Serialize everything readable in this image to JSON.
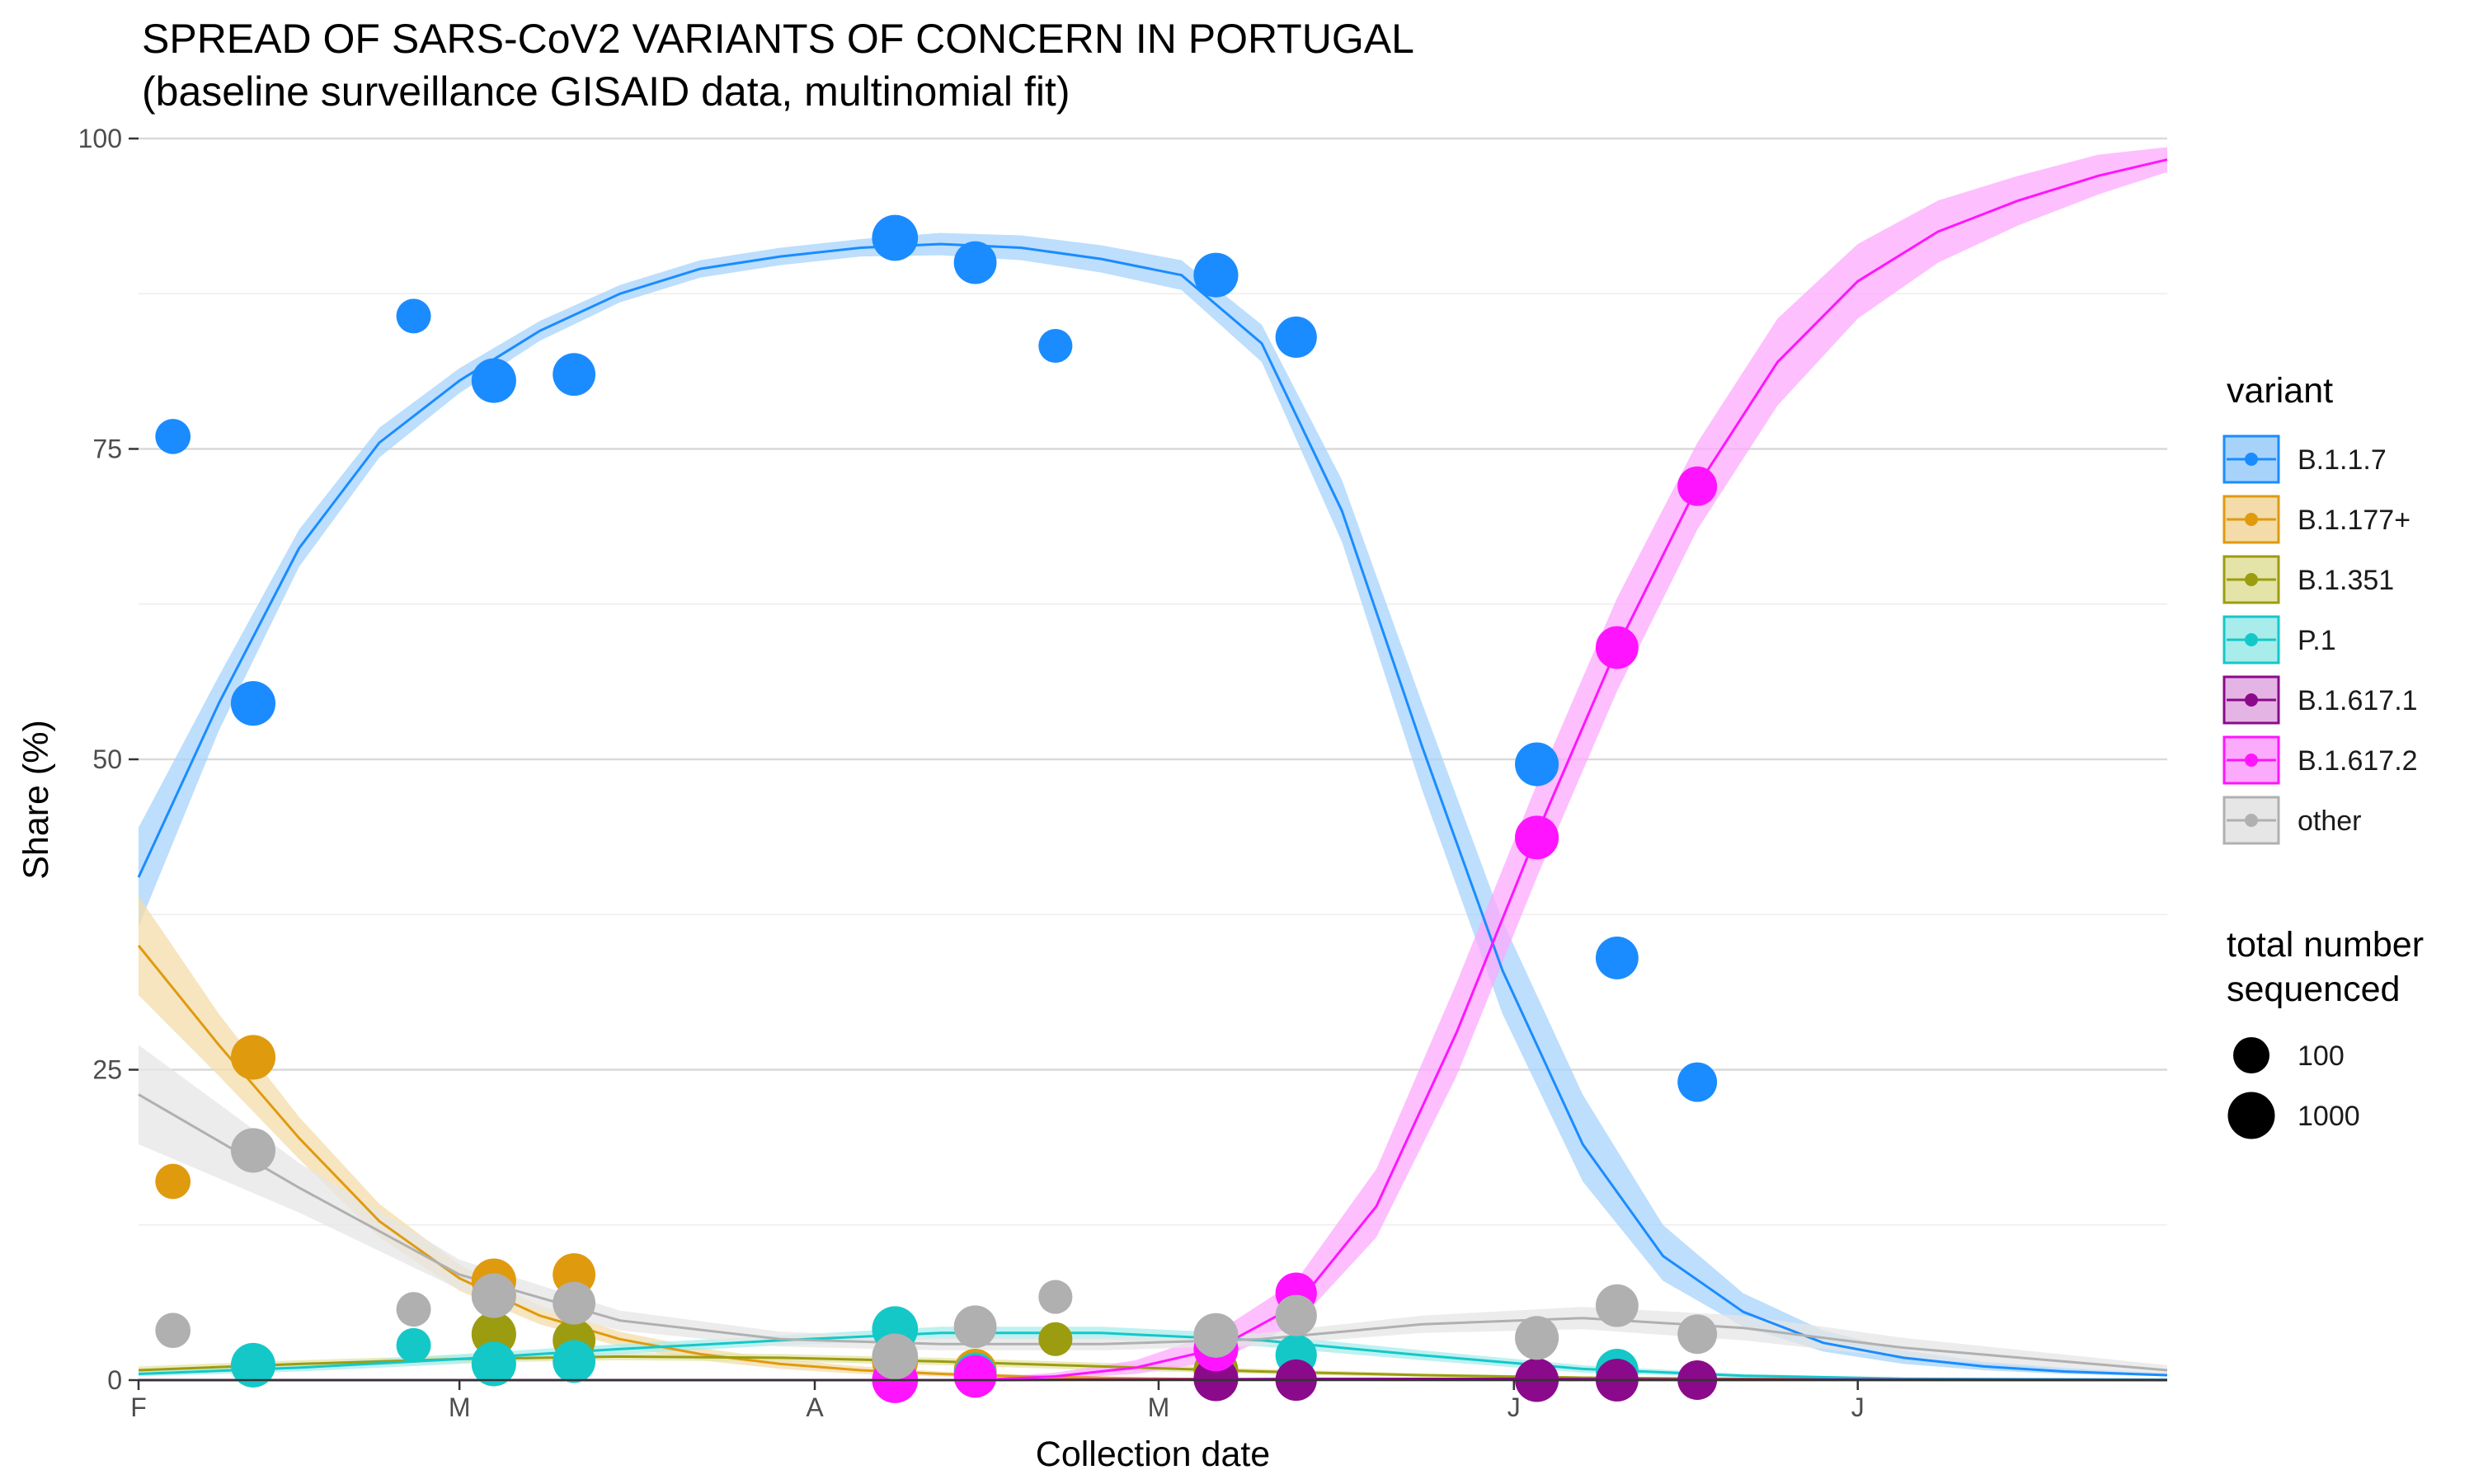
{
  "chart_data": {
    "type": "line",
    "title": "SPREAD OF SARS-CoV2 VARIANTS OF CONCERN IN PORTUGAL",
    "subtitle": "(baseline surveillance GISAID data, multinomial fit)",
    "xlabel": "Collection date",
    "ylabel": "Share (%)",
    "xlim": [
      "2021-02-01",
      "2021-07-28"
    ],
    "ylim": [
      0,
      100
    ],
    "x_ticks": [
      {
        "date": "2021-02-01",
        "label": "F"
      },
      {
        "date": "2021-03-01",
        "label": "M"
      },
      {
        "date": "2021-04-01",
        "label": "A"
      },
      {
        "date": "2021-05-01",
        "label": "M"
      },
      {
        "date": "2021-06-01",
        "label": "J"
      },
      {
        "date": "2021-07-01",
        "label": "J"
      }
    ],
    "y_ticks": [
      0,
      25,
      50,
      75,
      100
    ],
    "grid": true,
    "legend_placement": "right",
    "legend_title": "variant",
    "size_legend": {
      "title_line1": "total number",
      "title_line2": "sequenced",
      "entries": [
        {
          "label": "100",
          "value": 100
        },
        {
          "label": "1000",
          "value": 1000
        }
      ]
    },
    "series": [
      {
        "name": "B.1.1.7",
        "color": "#1a8cff",
        "fill": "#a7d3fb",
        "fit_x": [
          "2021-02-01",
          "2021-02-08",
          "2021-02-15",
          "2021-02-22",
          "2021-03-01",
          "2021-03-08",
          "2021-03-15",
          "2021-03-22",
          "2021-03-29",
          "2021-04-05",
          "2021-04-12",
          "2021-04-19",
          "2021-04-26",
          "2021-05-03",
          "2021-05-10",
          "2021-05-17",
          "2021-05-24",
          "2021-05-31",
          "2021-06-07",
          "2021-06-14",
          "2021-06-21",
          "2021-06-28",
          "2021-07-05",
          "2021-07-12",
          "2021-07-19",
          "2021-07-28"
        ],
        "fit": [
          40.5,
          54.5,
          67,
          75.5,
          80.5,
          84.5,
          87.5,
          89.5,
          90.5,
          91.2,
          91.5,
          91.2,
          90.3,
          89,
          83.5,
          70,
          51,
          33,
          19,
          10,
          5.5,
          3,
          1.8,
          1.1,
          0.7,
          0.4
        ],
        "lower": [
          36.5,
          52.3,
          65.5,
          74.3,
          79.5,
          83.7,
          86.8,
          88.8,
          89.8,
          90.5,
          90.6,
          90.2,
          89.2,
          87.8,
          82,
          67.5,
          47.5,
          29.5,
          16,
          8,
          4.3,
          2.3,
          1.3,
          0.8,
          0.5,
          0.3
        ],
        "upper": [
          44.5,
          56.7,
          68.5,
          76.7,
          81.5,
          85.3,
          88.2,
          90.2,
          91.2,
          91.9,
          92.4,
          92.2,
          91.4,
          90.2,
          85,
          72.5,
          54.5,
          37,
          23,
          12.5,
          7,
          4,
          2.4,
          1.5,
          1,
          0.6
        ],
        "points": [
          {
            "x": "2021-02-04",
            "y": 76,
            "n": 80
          },
          {
            "x": "2021-02-11",
            "y": 54.5,
            "n": 600
          },
          {
            "x": "2021-02-25",
            "y": 85.7,
            "n": 70
          },
          {
            "x": "2021-03-04",
            "y": 80.5,
            "n": 600
          },
          {
            "x": "2021-03-11",
            "y": 81,
            "n": 400
          },
          {
            "x": "2021-04-08",
            "y": 92,
            "n": 800
          },
          {
            "x": "2021-04-15",
            "y": 90,
            "n": 400
          },
          {
            "x": "2021-04-22",
            "y": 83.3,
            "n": 60
          },
          {
            "x": "2021-05-06",
            "y": 89,
            "n": 600
          },
          {
            "x": "2021-05-13",
            "y": 84,
            "n": 300
          },
          {
            "x": "2021-06-03",
            "y": 49.6,
            "n": 500
          },
          {
            "x": "2021-06-10",
            "y": 34,
            "n": 400
          },
          {
            "x": "2021-06-17",
            "y": 24,
            "n": 200
          }
        ]
      },
      {
        "name": "B.1.177+",
        "color": "#e09a0e",
        "fill": "#f3dcaa",
        "fit_x": [
          "2021-02-01",
          "2021-02-08",
          "2021-02-15",
          "2021-02-22",
          "2021-03-01",
          "2021-03-08",
          "2021-03-15",
          "2021-03-22",
          "2021-03-29",
          "2021-04-05",
          "2021-04-12",
          "2021-04-19",
          "2021-04-26",
          "2021-05-03",
          "2021-05-10",
          "2021-05-17",
          "2021-05-24",
          "2021-05-31",
          "2021-06-07",
          "2021-06-14",
          "2021-06-21",
          "2021-06-28",
          "2021-07-05",
          "2021-07-12",
          "2021-07-19",
          "2021-07-28"
        ],
        "fit": [
          35,
          27,
          19.5,
          12.8,
          8.2,
          5.2,
          3.3,
          2.1,
          1.3,
          0.8,
          0.5,
          0.3,
          0.18,
          0.1,
          0.06,
          0.03,
          0.02,
          0.01,
          0,
          0,
          0,
          0,
          0,
          0,
          0,
          0
        ],
        "lower": [
          31,
          24.5,
          17.8,
          11.5,
          7.2,
          4.5,
          2.7,
          1.6,
          0.9,
          0.5,
          0.3,
          0.15,
          0.08,
          0.04,
          0.02,
          0.01,
          0,
          0,
          0,
          0,
          0,
          0,
          0,
          0,
          0,
          0
        ],
        "upper": [
          39,
          29.5,
          21.2,
          14.2,
          9.3,
          6,
          3.9,
          2.6,
          1.7,
          1.1,
          0.7,
          0.45,
          0.3,
          0.18,
          0.11,
          0.06,
          0.04,
          0.02,
          0.01,
          0,
          0,
          0,
          0,
          0,
          0,
          0
        ],
        "points": [
          {
            "x": "2021-02-04",
            "y": 16,
            "n": 80
          },
          {
            "x": "2021-02-11",
            "y": 26,
            "n": 600
          },
          {
            "x": "2021-03-04",
            "y": 8,
            "n": 600
          },
          {
            "x": "2021-03-11",
            "y": 8.5,
            "n": 400
          },
          {
            "x": "2021-04-08",
            "y": 1.5,
            "n": 800
          },
          {
            "x": "2021-04-15",
            "y": 0.8,
            "n": 400
          }
        ]
      },
      {
        "name": "B.1.351",
        "color": "#9c9c10",
        "fill": "#e4e4a8",
        "fit_x": [
          "2021-02-01",
          "2021-02-15",
          "2021-03-01",
          "2021-03-15",
          "2021-03-29",
          "2021-04-12",
          "2021-04-26",
          "2021-05-10",
          "2021-05-24",
          "2021-06-07",
          "2021-06-21",
          "2021-07-05",
          "2021-07-28"
        ],
        "fit": [
          0.8,
          1.3,
          1.7,
          1.9,
          1.8,
          1.5,
          1.1,
          0.7,
          0.4,
          0.2,
          0.1,
          0.05,
          0.02
        ],
        "lower": [
          0.5,
          1,
          1.4,
          1.6,
          1.5,
          1.2,
          0.8,
          0.5,
          0.25,
          0.1,
          0.05,
          0.02,
          0
        ],
        "upper": [
          1.1,
          1.6,
          2,
          2.2,
          2.1,
          1.8,
          1.4,
          0.9,
          0.55,
          0.3,
          0.15,
          0.08,
          0.04
        ],
        "points": [
          {
            "x": "2021-03-04",
            "y": 3.7,
            "n": 600
          },
          {
            "x": "2021-03-11",
            "y": 3.2,
            "n": 400
          },
          {
            "x": "2021-04-22",
            "y": 3.3,
            "n": 60
          },
          {
            "x": "2021-05-06",
            "y": 0.8,
            "n": 600
          }
        ]
      },
      {
        "name": "P.1",
        "color": "#14c8c8",
        "fill": "#a8ecec",
        "fit_x": [
          "2021-02-01",
          "2021-02-15",
          "2021-03-01",
          "2021-03-15",
          "2021-03-29",
          "2021-04-12",
          "2021-04-26",
          "2021-05-10",
          "2021-05-24",
          "2021-06-07",
          "2021-06-21",
          "2021-07-05",
          "2021-07-28"
        ],
        "fit": [
          0.5,
          1,
          1.7,
          2.5,
          3.2,
          3.8,
          3.8,
          3.2,
          2,
          0.9,
          0.35,
          0.12,
          0.03
        ],
        "lower": [
          0.3,
          0.7,
          1.3,
          2.1,
          2.8,
          3.3,
          3.3,
          2.7,
          1.6,
          0.6,
          0.2,
          0.05,
          0.01
        ],
        "upper": [
          0.7,
          1.3,
          2.1,
          2.9,
          3.6,
          4.3,
          4.3,
          3.7,
          2.4,
          1.2,
          0.5,
          0.2,
          0.06
        ],
        "points": [
          {
            "x": "2021-02-11",
            "y": 1.2,
            "n": 600
          },
          {
            "x": "2021-02-25",
            "y": 2.8,
            "n": 70
          },
          {
            "x": "2021-03-04",
            "y": 1.3,
            "n": 600
          },
          {
            "x": "2021-03-11",
            "y": 1.5,
            "n": 400
          },
          {
            "x": "2021-04-08",
            "y": 4.1,
            "n": 800
          },
          {
            "x": "2021-04-15",
            "y": 0.5,
            "n": 400
          },
          {
            "x": "2021-05-13",
            "y": 2,
            "n": 300
          },
          {
            "x": "2021-06-10",
            "y": 0.8,
            "n": 400
          }
        ]
      },
      {
        "name": "B.1.617.1",
        "color": "#8b0a8b",
        "fill": "#e4b4e4",
        "fit_x": [
          "2021-02-01",
          "2021-04-15",
          "2021-05-01",
          "2021-05-15",
          "2021-06-01",
          "2021-06-15",
          "2021-07-28"
        ],
        "fit": [
          0,
          0,
          0.05,
          0.1,
          0.1,
          0.05,
          0
        ],
        "lower": [
          0,
          0,
          0,
          0,
          0,
          0,
          0
        ],
        "upper": [
          0.02,
          0.02,
          0.1,
          0.2,
          0.2,
          0.1,
          0.02
        ],
        "points": [
          {
            "x": "2021-05-06",
            "y": 0.1,
            "n": 600
          },
          {
            "x": "2021-05-13",
            "y": 0,
            "n": 300
          },
          {
            "x": "2021-06-03",
            "y": 0,
            "n": 500
          },
          {
            "x": "2021-06-10",
            "y": 0,
            "n": 400
          },
          {
            "x": "2021-06-17",
            "y": 0,
            "n": 200
          }
        ]
      },
      {
        "name": "B.1.617.2",
        "color": "#ff14ff",
        "fill": "#fcaafc",
        "fit_x": [
          "2021-04-15",
          "2021-04-22",
          "2021-04-29",
          "2021-05-06",
          "2021-05-13",
          "2021-05-20",
          "2021-05-27",
          "2021-06-03",
          "2021-06-10",
          "2021-06-17",
          "2021-06-24",
          "2021-07-01",
          "2021-07-08",
          "2021-07-15",
          "2021-07-22",
          "2021-07-28"
        ],
        "fit": [
          0,
          0.3,
          1,
          2.5,
          6,
          14,
          28,
          44,
          59,
          72,
          82,
          88.5,
          92.5,
          95,
          97,
          98.3
        ],
        "lower": [
          0,
          0.1,
          0.5,
          1.5,
          4.5,
          11.5,
          24.5,
          40.5,
          55.5,
          68.5,
          78.5,
          85.5,
          90,
          93,
          95.5,
          97.3
        ],
        "upper": [
          0.1,
          0.6,
          1.6,
          3.8,
          8,
          17,
          32,
          48,
          63,
          75.5,
          85.5,
          91.5,
          95,
          97,
          98.7,
          99.3
        ],
        "points": [
          {
            "x": "2021-04-08",
            "y": 0,
            "n": 800
          },
          {
            "x": "2021-04-15",
            "y": 0.3,
            "n": 400
          },
          {
            "x": "2021-05-06",
            "y": 2.5,
            "n": 600
          },
          {
            "x": "2021-05-13",
            "y": 7,
            "n": 300
          },
          {
            "x": "2021-06-03",
            "y": 43.7,
            "n": 500
          },
          {
            "x": "2021-06-10",
            "y": 59,
            "n": 400
          },
          {
            "x": "2021-06-17",
            "y": 72,
            "n": 200
          }
        ]
      },
      {
        "name": "other",
        "color": "#b0b0b0",
        "fill": "#e6e6e6",
        "fit_x": [
          "2021-02-01",
          "2021-02-15",
          "2021-03-01",
          "2021-03-15",
          "2021-03-29",
          "2021-04-12",
          "2021-04-26",
          "2021-05-10",
          "2021-05-24",
          "2021-06-07",
          "2021-06-21",
          "2021-07-05",
          "2021-07-28"
        ],
        "fit": [
          23,
          15.5,
          8.5,
          4.8,
          3.3,
          2.9,
          2.9,
          3.3,
          4.5,
          5,
          4.2,
          2.6,
          0.8
        ],
        "lower": [
          19,
          13.5,
          7.3,
          4,
          2.7,
          2.4,
          2.4,
          2.8,
          3.8,
          4.1,
          3.2,
          1.8,
          0.4
        ],
        "upper": [
          27,
          17.5,
          9.7,
          5.6,
          3.9,
          3.4,
          3.4,
          3.8,
          5.2,
          5.9,
          5.2,
          3.4,
          1.2
        ],
        "points": [
          {
            "x": "2021-02-04",
            "y": 4,
            "n": 80
          },
          {
            "x": "2021-02-11",
            "y": 18.5,
            "n": 600
          },
          {
            "x": "2021-02-25",
            "y": 5.7,
            "n": 70
          },
          {
            "x": "2021-03-04",
            "y": 6.8,
            "n": 600
          },
          {
            "x": "2021-03-11",
            "y": 6.2,
            "n": 400
          },
          {
            "x": "2021-04-08",
            "y": 1.9,
            "n": 800
          },
          {
            "x": "2021-04-15",
            "y": 4.3,
            "n": 400
          },
          {
            "x": "2021-04-22",
            "y": 6.7,
            "n": 60
          },
          {
            "x": "2021-05-06",
            "y": 3.6,
            "n": 600
          },
          {
            "x": "2021-05-13",
            "y": 5.2,
            "n": 300
          },
          {
            "x": "2021-06-03",
            "y": 3.4,
            "n": 500
          },
          {
            "x": "2021-06-10",
            "y": 6,
            "n": 400
          },
          {
            "x": "2021-06-17",
            "y": 3.7,
            "n": 200
          }
        ]
      }
    ]
  }
}
